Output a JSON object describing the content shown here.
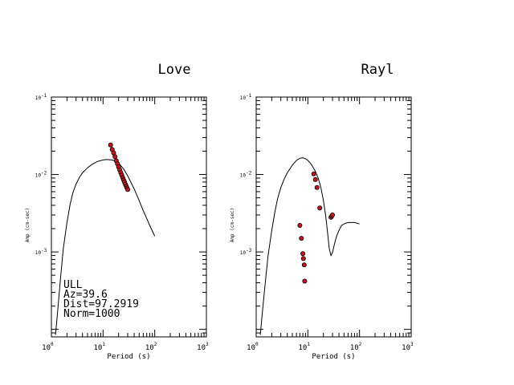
{
  "chart_data": [
    {
      "type": "line",
      "title": "Love",
      "xlabel": "Period (s)",
      "ylabel": "Amp (cm-sec)",
      "xscale": "log",
      "yscale": "log",
      "xlim": [
        1,
        1000
      ],
      "ylim": [
        8e-05,
        0.1
      ],
      "xticks": [
        {
          "base": "10",
          "exp": "0",
          "value": 1
        },
        {
          "base": "10",
          "exp": "1",
          "value": 10
        },
        {
          "base": "10",
          "exp": "2",
          "value": 100
        },
        {
          "base": "10",
          "exp": "3",
          "value": 1000
        }
      ],
      "yticks": [
        {
          "base": "10",
          "exp": "-1",
          "value": 0.1
        },
        {
          "base": "10",
          "exp": "-2",
          "value": 0.01
        },
        {
          "base": "10",
          "exp": "-3",
          "value": 0.001
        }
      ],
      "annotations": [
        "ULL",
        "Az=39.6",
        "Dist=97.2919",
        "Norm=1000"
      ],
      "series": [
        {
          "kind": "line",
          "x": [
            1.2,
            1.3,
            1.5,
            1.7,
            2.0,
            2.3,
            2.6,
            3.0,
            3.5,
            4.0,
            5.0,
            6.0,
            7.0,
            8.0,
            10.0,
            12.0,
            14.0,
            16.0,
            18.0,
            20.0,
            25.0,
            30.0,
            40.0,
            50.0,
            60.0,
            70.0,
            80.0,
            100.0
          ],
          "y": [
            8.5e-05,
            0.00015,
            0.00045,
            0.0011,
            0.0024,
            0.0041,
            0.0058,
            0.0075,
            0.0092,
            0.0105,
            0.0122,
            0.0134,
            0.0142,
            0.0148,
            0.0154,
            0.0156,
            0.0155,
            0.0152,
            0.0147,
            0.014,
            0.0118,
            0.0096,
            0.0065,
            0.0046,
            0.0034,
            0.0027,
            0.0022,
            0.0016
          ]
        },
        {
          "kind": "scatter",
          "x": [
            14.0,
            15.0,
            16.0,
            17.0,
            18.0,
            19.0,
            20.0,
            21.0,
            22.0,
            23.0,
            24.0,
            25.0,
            26.0,
            27.0,
            28.0,
            29.0,
            30.0
          ],
          "y": [
            0.024,
            0.021,
            0.019,
            0.017,
            0.015,
            0.0137,
            0.0125,
            0.0115,
            0.0106,
            0.0098,
            0.0091,
            0.0085,
            0.008,
            0.0075,
            0.0071,
            0.0067,
            0.0064
          ]
        }
      ]
    },
    {
      "type": "line",
      "title": "Rayl",
      "xlabel": "Period (s)",
      "ylabel": "Amp (cm-sec)",
      "xscale": "log",
      "yscale": "log",
      "xlim": [
        1,
        1000
      ],
      "ylim": [
        8e-05,
        0.1
      ],
      "xticks": [
        {
          "base": "10",
          "exp": "0",
          "value": 1
        },
        {
          "base": "10",
          "exp": "1",
          "value": 10
        },
        {
          "base": "10",
          "exp": "2",
          "value": 100
        },
        {
          "base": "10",
          "exp": "3",
          "value": 1000
        }
      ],
      "yticks": [
        {
          "base": "10",
          "exp": "-1",
          "value": 0.1
        },
        {
          "base": "10",
          "exp": "-2",
          "value": 0.01
        },
        {
          "base": "10",
          "exp": "-3",
          "value": 0.001
        }
      ],
      "annotations": [],
      "series": [
        {
          "kind": "line",
          "x": [
            1.2,
            1.3,
            1.5,
            1.7,
            2.0,
            2.3,
            2.6,
            3.0,
            3.5,
            4.0,
            5.0,
            6.0,
            7.0,
            8.0,
            9.0,
            10.0,
            11.0,
            12.0,
            14.0,
            16.0,
            18.0,
            20.0,
            22.0,
            24.0,
            26.0,
            28.0,
            30.0,
            33.0,
            36.0,
            40.0,
            45.0,
            50.0,
            60.0,
            70.0,
            80.0,
            100.0
          ],
          "y": [
            8.5e-05,
            0.00015,
            0.0004,
            0.0009,
            0.0019,
            0.0033,
            0.0049,
            0.0068,
            0.0088,
            0.0105,
            0.0132,
            0.0152,
            0.0162,
            0.0164,
            0.016,
            0.0152,
            0.0142,
            0.0131,
            0.011,
            0.0088,
            0.0066,
            0.0046,
            0.003,
            0.0018,
            0.0011,
            0.0009,
            0.00098,
            0.0013,
            0.0016,
            0.0019,
            0.0022,
            0.0023,
            0.0024,
            0.0024,
            0.0024,
            0.0023
          ]
        },
        {
          "kind": "scatter",
          "x": [
            7.0,
            7.5,
            8.0,
            8.2,
            8.5,
            8.7,
            13.0,
            14.0,
            15.0,
            17.0,
            28.0,
            29.0,
            30.0
          ],
          "y": [
            0.0022,
            0.0015,
            0.00095,
            0.00082,
            0.00068,
            0.00042,
            0.0102,
            0.0086,
            0.0068,
            0.0037,
            0.0028,
            0.0029,
            0.003
          ]
        }
      ]
    }
  ]
}
